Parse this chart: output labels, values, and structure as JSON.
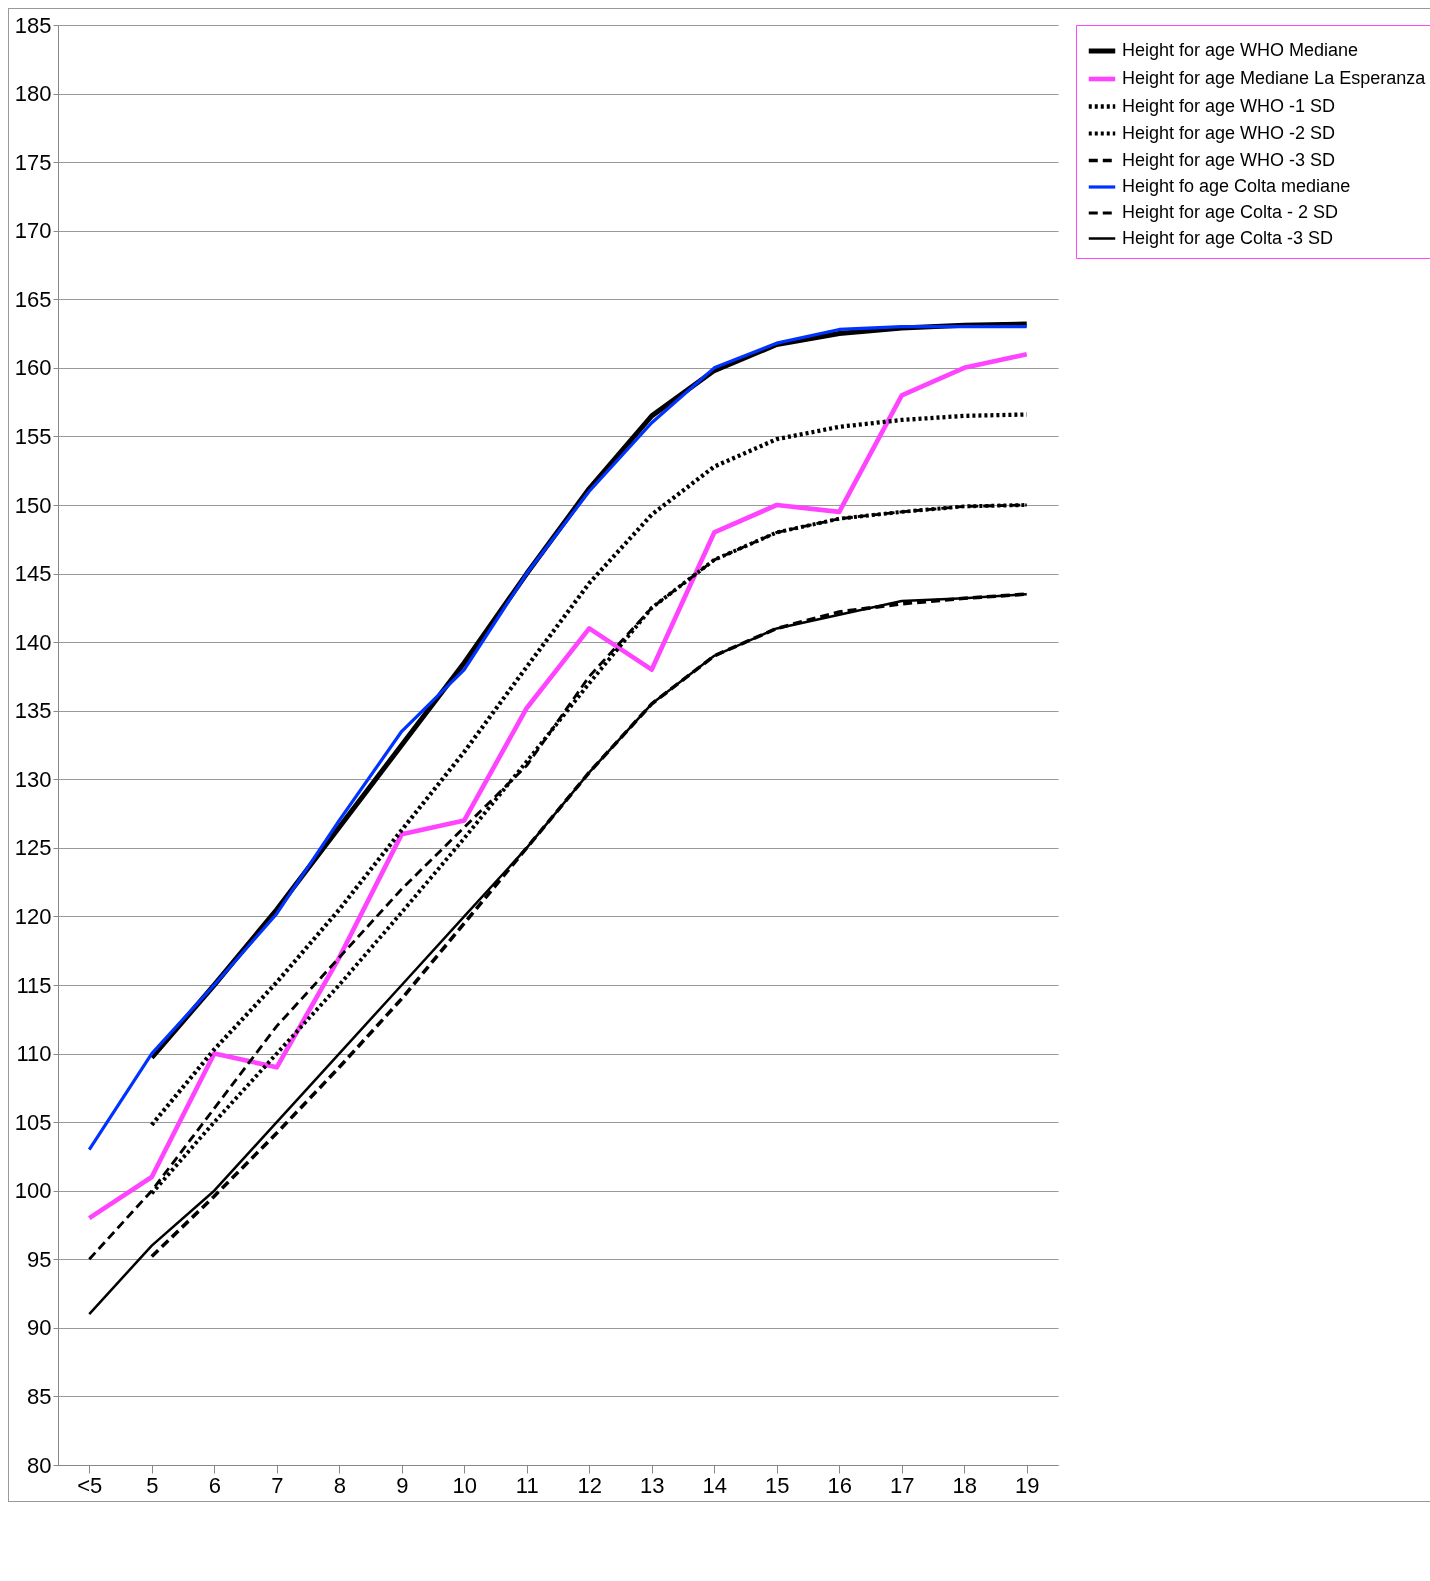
{
  "chart_data": {
    "type": "line",
    "categories": [
      "<5",
      "5",
      "6",
      "7",
      "8",
      "9",
      "10",
      "11",
      "12",
      "13",
      "14",
      "15",
      "16",
      "17",
      "18",
      "19"
    ],
    "ylim": [
      80,
      185
    ],
    "yticks": [
      80,
      85,
      90,
      95,
      100,
      105,
      110,
      115,
      120,
      125,
      130,
      135,
      140,
      145,
      150,
      155,
      160,
      165,
      170,
      175,
      180,
      185
    ],
    "grid": "y",
    "legend": "right",
    "marker": "none",
    "series": [
      {
        "name": "Height for age WHO Mediane",
        "color": "#000000",
        "line_style": "solid",
        "values": [
          null,
          109.7,
          115,
          120.5,
          126.5,
          132.5,
          138.5,
          145,
          151.2,
          156.5,
          159.8,
          161.7,
          162.5,
          162.9,
          163.1,
          163.2
        ]
      },
      {
        "name": "Height for age Mediane La Esperanza",
        "color": "#ff44ff",
        "line_style": "solid",
        "values": [
          98,
          101,
          110,
          109,
          117,
          126,
          127,
          135.2,
          141,
          138,
          148,
          150,
          149.5,
          158,
          160,
          161
        ]
      },
      {
        "name": "Height for age WHO -1 SD",
        "color": "#000000",
        "line_style": "dotted",
        "values": [
          null,
          104.8,
          110.3,
          115.2,
          120.5,
          126.3,
          132,
          138.2,
          144.3,
          149.3,
          152.8,
          154.8,
          155.7,
          156.2,
          156.5,
          156.6
        ]
      },
      {
        "name": "Height for age WHO -2 SD",
        "color": "#000000",
        "line_style": "dotted",
        "values": [
          null,
          99.8,
          105,
          110,
          115,
          120.3,
          125.7,
          131.3,
          137,
          142.5,
          146,
          148,
          149,
          149.5,
          149.9,
          150
        ]
      },
      {
        "name": "Height for age WHO -3 SD",
        "color": "#000000",
        "line_style": "dashed",
        "values": [
          null,
          95.2,
          99.6,
          104.2,
          109,
          114,
          119.5,
          125,
          130.5,
          135.5,
          139,
          141,
          142.2,
          142.8,
          143.2,
          143.5
        ]
      },
      {
        "name": "Height fo age Colta mediane",
        "color": "#0033ff",
        "line_style": "solid",
        "values": [
          103,
          110,
          115,
          120.2,
          127,
          133.5,
          138,
          145,
          151,
          156,
          160,
          161.8,
          162.8,
          163,
          163,
          163
        ]
      },
      {
        "name": "Height for age Colta - 2 SD",
        "color": "#000000",
        "line_style": "dashed",
        "values": [
          95,
          100,
          106,
          112,
          117,
          122,
          126.5,
          131,
          137.5,
          142.5,
          146,
          148,
          149,
          149.5,
          149.9,
          150
        ]
      },
      {
        "name": "Height for age Colta -3 SD",
        "color": "#000000",
        "line_style": "solid",
        "values": [
          91,
          96,
          100,
          105,
          110,
          115,
          120,
          125,
          130.5,
          135.5,
          139,
          141,
          142,
          143,
          143.2,
          143.5
        ]
      }
    ]
  }
}
